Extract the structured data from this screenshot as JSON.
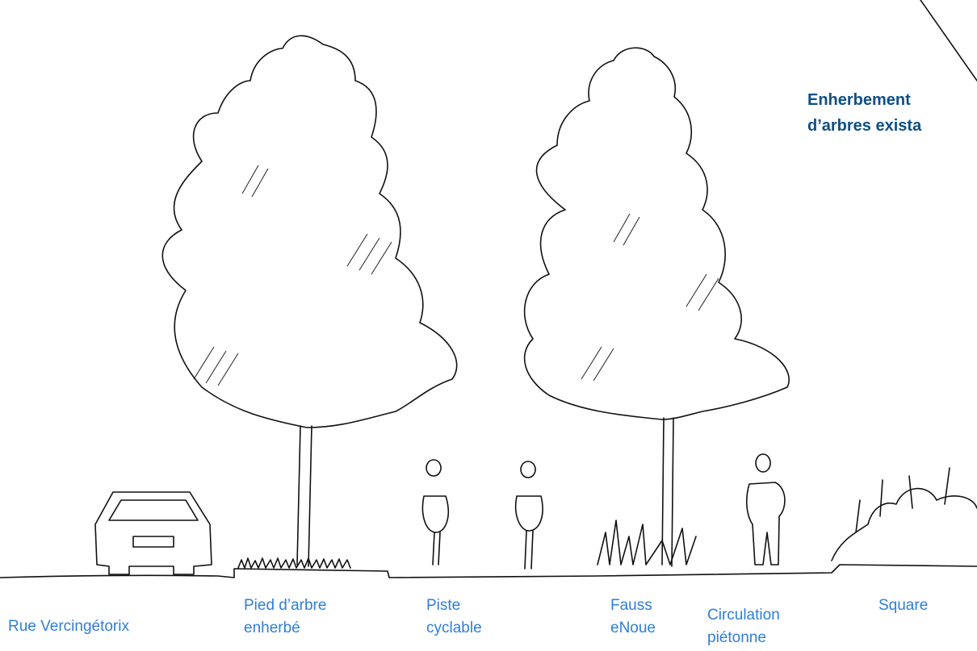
{
  "annotation": {
    "lines": [
      "Enherbement",
      "d’arbres exista"
    ]
  },
  "labels": [
    {
      "lines": [
        "Rue Vercingétorix"
      ]
    },
    {
      "lines": [
        "Pied d’arbre",
        "enherbé"
      ]
    },
    {
      "lines": [
        "Piste",
        "cyclable"
      ]
    },
    {
      "lines": [
        "Fauss",
        "eNoue"
      ]
    },
    {
      "lines": [
        "Circulation",
        "piétonne"
      ]
    },
    {
      "lines": [
        "Square"
      ]
    }
  ]
}
